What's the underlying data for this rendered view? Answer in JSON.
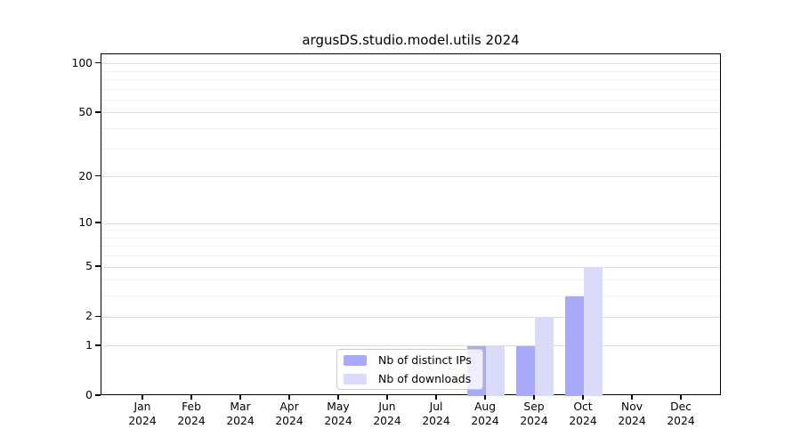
{
  "title": "argusDS.studio.model.utils 2024",
  "colors": {
    "distinct_ips": "#a9a9fa",
    "downloads": "#dadaf9",
    "grid_major": "#dcdcdc",
    "grid_minor": "#f1f1f4",
    "spine": "#000000",
    "legend_border": "#cccccc"
  },
  "legend": {
    "items": [
      {
        "label": "Nb of distinct IPs",
        "color": "#a9a9fa"
      },
      {
        "label": "Nb of downloads",
        "color": "#dadaf9"
      }
    ]
  },
  "chart_data": {
    "type": "bar",
    "title": "argusDS.studio.model.utils 2024",
    "categories": [
      "Jan 2024",
      "Feb 2024",
      "Mar 2024",
      "Apr 2024",
      "May 2024",
      "Jun 2024",
      "Jul 2024",
      "Aug 2024",
      "Sep 2024",
      "Oct 2024",
      "Nov 2024",
      "Dec 2024"
    ],
    "category_line1": [
      "Jan",
      "Feb",
      "Mar",
      "Apr",
      "May",
      "Jun",
      "Jul",
      "Aug",
      "Sep",
      "Oct",
      "Nov",
      "Dec"
    ],
    "category_line2": [
      "2024",
      "2024",
      "2024",
      "2024",
      "2024",
      "2024",
      "2024",
      "2024",
      "2024",
      "2024",
      "2024",
      "2024"
    ],
    "series": [
      {
        "name": "Nb of distinct IPs",
        "color": "#a9a9fa",
        "values": [
          0,
          0,
          0,
          0,
          0,
          0,
          0,
          1,
          1,
          3,
          0,
          0
        ]
      },
      {
        "name": "Nb of downloads",
        "color": "#dadaf9",
        "values": [
          0,
          0,
          0,
          0,
          0,
          0,
          0,
          1,
          2,
          5,
          0,
          0
        ]
      }
    ],
    "xlabel": "",
    "ylabel": "",
    "yscale": "log1p",
    "ylim": [
      0,
      115
    ],
    "yticks": [
      0,
      1,
      2,
      5,
      10,
      20,
      50,
      100
    ],
    "ytick_labels": [
      "0",
      "1",
      "2",
      "5",
      "10",
      "20",
      "50",
      "100"
    ],
    "yticks_minor": [
      3,
      4,
      6,
      7,
      8,
      9,
      30,
      40,
      60,
      70,
      80,
      90
    ],
    "grid": "horizontal",
    "legend_position": "lower-center"
  }
}
